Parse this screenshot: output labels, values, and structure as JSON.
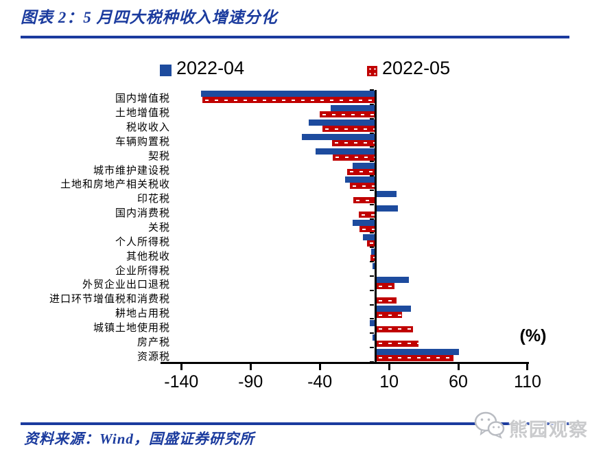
{
  "header": {
    "title": "图表 2：5 月四大税种收入增速分化"
  },
  "legend": {
    "items": [
      {
        "label": "2022-04",
        "color": "#1d4b9e",
        "pattern": "solid"
      },
      {
        "label": "2022-05",
        "color": "#c00000",
        "pattern": "white-dotted"
      }
    ],
    "position": "top"
  },
  "chart_data": {
    "type": "bar",
    "orientation": "horizontal",
    "title": "5月四大税种收入增速分化",
    "unit_label": "(%)",
    "grid": false,
    "legend_position": "top",
    "categories": [
      "国内增值税",
      "土地增值税",
      "税收收入",
      "车辆购置税",
      "契税",
      "城市维护建设税",
      "土地和房地产相关税收",
      "印花税",
      "国内消费税",
      "关税",
      "个人所得税",
      "其他税收",
      "企业所得税",
      "外贸企业出口退税",
      "进口环节增值税和消费税",
      "耕地占用税",
      "城镇土地使用税",
      "房产税",
      "资源税"
    ],
    "series": [
      {
        "name": "2022-04",
        "color": "#1d4b9e",
        "values": [
          -126,
          -32,
          -48,
          -53,
          -43,
          -16.5,
          -22,
          15,
          16,
          -16.5,
          -9,
          -3,
          -2,
          24,
          0,
          25.5,
          -4,
          -2,
          60
        ]
      },
      {
        "name": "2022-05",
        "color": "#c00000",
        "values": [
          -125,
          -40,
          -38,
          -31,
          -30.5,
          -20.5,
          -18.5,
          -16,
          -12,
          -11.5,
          -6,
          -3.5,
          -0.5,
          13.5,
          15,
          19,
          27,
          31,
          56
        ]
      }
    ],
    "x_ticks": [
      -140,
      -90,
      -40,
      10,
      60,
      110
    ],
    "xlim": [
      -155,
      111
    ]
  },
  "footer": {
    "source": "资料来源：Wind，国盛证券研究所",
    "watermark": "熊园观察"
  }
}
